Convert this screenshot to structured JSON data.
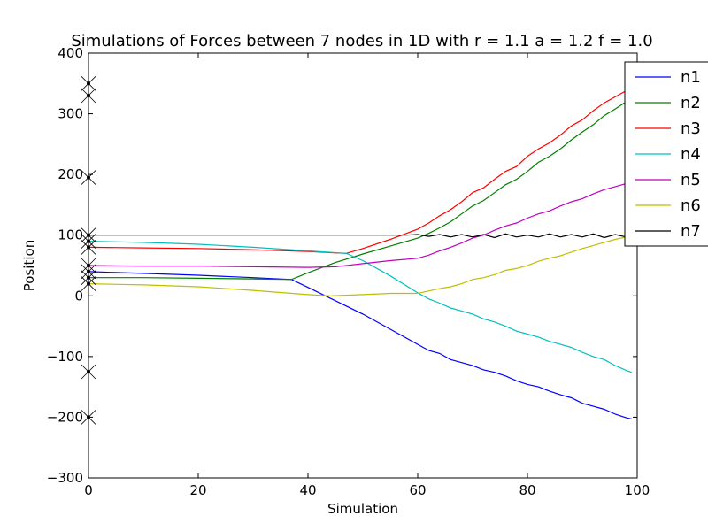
{
  "chart_data": {
    "type": "line",
    "title": "Simulations of Forces between 7 nodes in 1D with r = 1.1 a = 1.2 f = 1.0",
    "xlabel": "Simulation",
    "ylabel": "Position",
    "xlim": [
      0,
      100
    ],
    "ylim": [
      -300,
      400
    ],
    "xticks": [
      0,
      20,
      40,
      60,
      80,
      100
    ],
    "yticks": [
      -300,
      -200,
      -100,
      0,
      100,
      200,
      300,
      400
    ],
    "grid": false,
    "legend_position": "top-right",
    "series": [
      {
        "name": "n1",
        "color": "#0000ff",
        "x": [
          0,
          10,
          20,
          30,
          37,
          40,
          45,
          50,
          55,
          60,
          62,
          64,
          66,
          68,
          70,
          72,
          74,
          76,
          78,
          80,
          82,
          84,
          86,
          88,
          90,
          92,
          94,
          96,
          98,
          99
        ],
        "y": [
          40,
          37,
          34,
          30,
          27,
          14,
          -8,
          -30,
          -55,
          -80,
          -90,
          -95,
          -105,
          -110,
          -115,
          -122,
          -126,
          -132,
          -140,
          -146,
          -150,
          -157,
          -163,
          -168,
          -177,
          -182,
          -187,
          -195,
          -201,
          -203
        ]
      },
      {
        "name": "n2",
        "color": "#008000",
        "x": [
          0,
          10,
          20,
          30,
          37,
          40,
          45,
          50,
          55,
          60,
          62,
          64,
          66,
          68,
          70,
          72,
          74,
          76,
          78,
          80,
          82,
          84,
          86,
          88,
          90,
          92,
          94,
          96,
          98,
          99
        ],
        "y": [
          30,
          30,
          29,
          28,
          27,
          38,
          55,
          69,
          82,
          95,
          103,
          112,
          122,
          135,
          148,
          157,
          170,
          183,
          192,
          205,
          220,
          230,
          242,
          257,
          270,
          282,
          297,
          308,
          320,
          328
        ]
      },
      {
        "name": "n3",
        "color": "#ff0000",
        "x": [
          0,
          10,
          20,
          30,
          40,
          47,
          50,
          55,
          60,
          62,
          64,
          66,
          68,
          70,
          72,
          74,
          76,
          78,
          80,
          82,
          84,
          86,
          88,
          90,
          92,
          94,
          96,
          98,
          99
        ],
        "y": [
          80,
          79,
          78,
          76,
          73,
          70,
          78,
          93,
          110,
          120,
          132,
          142,
          155,
          170,
          178,
          192,
          205,
          213,
          230,
          242,
          252,
          265,
          280,
          290,
          305,
          318,
          328,
          338,
          345
        ]
      },
      {
        "name": "n4",
        "color": "#00bfbf",
        "x": [
          0,
          10,
          20,
          30,
          40,
          47,
          50,
          55,
          60,
          62,
          64,
          66,
          68,
          70,
          72,
          74,
          76,
          78,
          80,
          82,
          84,
          86,
          88,
          90,
          92,
          94,
          96,
          98,
          99
        ],
        "y": [
          90,
          88,
          85,
          80,
          74,
          70,
          58,
          33,
          5,
          -5,
          -12,
          -20,
          -25,
          -30,
          -38,
          -43,
          -50,
          -58,
          -63,
          -68,
          -75,
          -80,
          -85,
          -93,
          -100,
          -105,
          -115,
          -123,
          -126
        ]
      },
      {
        "name": "n5",
        "color": "#bf00bf",
        "x": [
          0,
          10,
          20,
          30,
          40,
          45,
          50,
          55,
          60,
          62,
          64,
          66,
          68,
          70,
          72,
          74,
          76,
          78,
          80,
          82,
          84,
          86,
          88,
          90,
          92,
          94,
          96,
          98,
          99
        ],
        "y": [
          50,
          49,
          49,
          48,
          47,
          48,
          53,
          58,
          62,
          67,
          74,
          80,
          87,
          95,
          100,
          108,
          115,
          120,
          128,
          135,
          140,
          148,
          155,
          160,
          168,
          175,
          180,
          185,
          190
        ]
      },
      {
        "name": "n6",
        "color": "#bfbf00",
        "x": [
          0,
          10,
          20,
          30,
          40,
          44,
          50,
          55,
          60,
          62,
          64,
          66,
          68,
          70,
          72,
          74,
          76,
          78,
          80,
          82,
          84,
          86,
          88,
          90,
          92,
          94,
          96,
          98,
          99
        ],
        "y": [
          20,
          18,
          15,
          9,
          2,
          0,
          2,
          4,
          4,
          8,
          12,
          15,
          20,
          27,
          30,
          35,
          42,
          45,
          50,
          57,
          62,
          66,
          72,
          78,
          83,
          88,
          93,
          97,
          99
        ]
      },
      {
        "name": "n7",
        "color": "#000000",
        "x": [
          0,
          10,
          20,
          30,
          40,
          50,
          58,
          60,
          62,
          64,
          66,
          68,
          70,
          72,
          74,
          76,
          78,
          80,
          82,
          84,
          86,
          88,
          90,
          92,
          94,
          96,
          98,
          99
        ],
        "y": [
          100,
          100,
          100,
          100,
          100,
          100,
          100,
          101,
          98,
          101,
          97,
          101,
          97,
          101,
          96,
          102,
          97,
          100,
          97,
          102,
          97,
          101,
          97,
          102,
          96,
          101,
          97,
          99
        ]
      }
    ],
    "start_markers": [
      350,
      330,
      195,
      100,
      90,
      80,
      50,
      40,
      30,
      20,
      -125,
      -200
    ]
  }
}
